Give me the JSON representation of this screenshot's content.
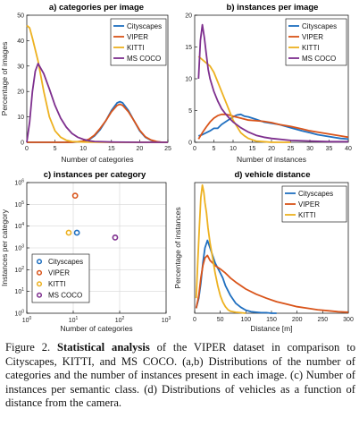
{
  "colors": {
    "Cityscapes": "#1f6fc0",
    "VIPER": "#d9541a",
    "KITTI": "#edb120",
    "MS COCO": "#7e2f8e"
  },
  "caption": {
    "label": "Figure 2.",
    "bold": "Statistical analysis",
    "text": " of the VIPER dataset in comparison to Cityscapes, KITTI, and MS COCO. (a,b) Distributions of the number of categories and the number of instances present in each image. (c) Number of instances per semantic class. (d) Distributions of vehicles as a function of distance from the camera."
  },
  "chart_data": [
    {
      "id": "a",
      "type": "line",
      "title": "a) categories per image",
      "xlabel": "Number of categories",
      "ylabel": "Percentage of images",
      "xlim": [
        0,
        25
      ],
      "ylim": [
        0,
        50
      ],
      "xticks": [
        0,
        5,
        10,
        15,
        20,
        25
      ],
      "yticks": [
        0,
        10,
        20,
        30,
        40,
        50
      ],
      "legend": "top-right",
      "series": [
        {
          "name": "Cityscapes",
          "x": [
            0,
            2,
            4,
            6,
            8,
            10,
            11,
            12,
            13,
            14,
            15,
            16,
            16.5,
            17,
            18,
            19,
            20,
            21,
            22,
            23,
            24,
            25
          ],
          "y": [
            0,
            0,
            0,
            0,
            0,
            0.3,
            1,
            2.5,
            5,
            8.5,
            12.5,
            15.5,
            16,
            15.5,
            12.5,
            8.5,
            4.5,
            2,
            0.8,
            0.2,
            0,
            0
          ]
        },
        {
          "name": "VIPER",
          "x": [
            0,
            2,
            4,
            6,
            8,
            10,
            11,
            12,
            13,
            14,
            15,
            16,
            16.5,
            17,
            18,
            19,
            20,
            21,
            22,
            23,
            24,
            25
          ],
          "y": [
            0,
            0,
            0,
            0,
            0,
            0.5,
            1.2,
            2.8,
            5.5,
            8.5,
            12,
            14.5,
            15,
            14.5,
            12,
            8.5,
            4.8,
            2.2,
            0.9,
            0.3,
            0,
            0
          ]
        },
        {
          "name": "KITTI",
          "x": [
            0,
            0.5,
            1,
            2,
            3,
            4,
            5,
            6,
            7,
            8,
            10,
            15,
            20,
            25
          ],
          "y": [
            46,
            45,
            41,
            32,
            20,
            10,
            4.5,
            2,
            0.8,
            0.3,
            0.1,
            0,
            0,
            0
          ]
        },
        {
          "name": "MS COCO",
          "x": [
            0,
            0.5,
            1,
            1.5,
            2,
            3,
            4,
            5,
            6,
            7,
            8,
            9,
            10,
            11,
            12,
            15,
            20,
            25
          ],
          "y": [
            0,
            8,
            20,
            28,
            31,
            27,
            21,
            14.5,
            9.5,
            6,
            3.5,
            2,
            1.2,
            0.6,
            0.3,
            0.1,
            0,
            0
          ]
        }
      ]
    },
    {
      "id": "b",
      "type": "line",
      "title": "b) instances per image",
      "xlabel": "Number of instances",
      "ylabel": "",
      "xlim": [
        0,
        40
      ],
      "ylim": [
        0,
        20
      ],
      "xticks": [
        0,
        5,
        10,
        15,
        20,
        25,
        30,
        35,
        40
      ],
      "yticks": [
        0,
        5,
        10,
        15,
        20
      ],
      "legend": "top-right",
      "series": [
        {
          "name": "Cityscapes",
          "x": [
            1,
            2,
            3,
            4,
            5,
            6,
            7,
            8,
            9,
            10,
            11,
            12,
            13,
            14,
            15,
            16,
            18,
            20,
            22,
            25,
            28,
            30,
            32,
            35,
            38,
            40
          ],
          "y": [
            1,
            1.2,
            1.5,
            1.8,
            2.2,
            2.2,
            2.8,
            3.2,
            3.6,
            4,
            4.3,
            4.4,
            4.1,
            4,
            3.8,
            3.6,
            3.2,
            3,
            2.8,
            2.3,
            1.8,
            1.5,
            1.2,
            0.9,
            0.6,
            0.5
          ]
        },
        {
          "name": "VIPER",
          "x": [
            1,
            2,
            3,
            4,
            5,
            6,
            7,
            8,
            9,
            10,
            12,
            14,
            16,
            18,
            20,
            22,
            25,
            28,
            30,
            32,
            35,
            38,
            40
          ],
          "y": [
            0.5,
            1.5,
            2.4,
            3.2,
            3.8,
            4.2,
            4.4,
            4.4,
            4.3,
            4.1,
            3.8,
            3.5,
            3.4,
            3.3,
            3.1,
            2.8,
            2.5,
            2.1,
            1.8,
            1.6,
            1.3,
            1,
            0.8
          ]
        },
        {
          "name": "KITTI",
          "x": [
            1,
            2,
            3,
            4,
            5,
            6,
            7,
            8,
            9,
            10,
            11,
            12,
            13,
            14,
            15,
            16,
            18,
            20,
            22,
            25
          ],
          "y": [
            13.5,
            13,
            12.5,
            12,
            11,
            9.5,
            8,
            6.5,
            5,
            3.5,
            2.5,
            1.5,
            1,
            0.6,
            0.4,
            0.2,
            0.1,
            0,
            0,
            0
          ]
        },
        {
          "name": "MS COCO",
          "x": [
            1,
            1.5,
            2,
            2.5,
            3,
            3.5,
            4,
            5,
            6,
            7,
            8,
            9,
            10,
            12,
            14,
            16,
            18,
            20,
            25,
            30,
            35,
            40
          ],
          "y": [
            10,
            16,
            18.5,
            16.5,
            14,
            11.5,
            10,
            8,
            6.5,
            5.3,
            4.5,
            3.8,
            3.2,
            2.3,
            1.6,
            1.1,
            0.8,
            0.6,
            0.3,
            0.2,
            0.1,
            0.1
          ]
        }
      ]
    },
    {
      "id": "c",
      "type": "scatter",
      "title": "c) instances per category",
      "xlabel": "Number of categories",
      "ylabel": "Instances per category",
      "xscale": "log",
      "yscale": "log",
      "xlim": [
        1,
        1000
      ],
      "ylim": [
        1,
        1000000
      ],
      "xtick_labels": [
        "10^0",
        "10^1",
        "10^2",
        "10^3"
      ],
      "ytick_labels": [
        "10^0",
        "10^1",
        "10^2",
        "10^3",
        "10^4",
        "10^5",
        "10^6"
      ],
      "grid": true,
      "legend": "bottom-left",
      "series": [
        {
          "name": "Cityscapes",
          "x": [
            12
          ],
          "y": [
            5000
          ]
        },
        {
          "name": "VIPER",
          "x": [
            11
          ],
          "y": [
            250000
          ]
        },
        {
          "name": "KITTI",
          "x": [
            8
          ],
          "y": [
            5000
          ]
        },
        {
          "name": "MS COCO",
          "x": [
            80
          ],
          "y": [
            3000
          ]
        }
      ]
    },
    {
      "id": "d",
      "type": "line",
      "title": "d) vehicle distance",
      "xlabel": "Distance [m]",
      "ylabel": "Percentage of instances",
      "xlim": [
        0,
        300
      ],
      "ylim": [
        0,
        2.6
      ],
      "xticks": [
        0,
        50,
        100,
        150,
        200,
        250,
        300
      ],
      "legend": "top-right",
      "series": [
        {
          "name": "Cityscapes",
          "x": [
            3,
            8,
            12,
            16,
            20,
            25,
            30,
            35,
            40,
            45,
            50,
            55,
            60,
            70,
            80,
            90,
            100,
            110,
            120,
            130,
            140,
            150,
            160
          ],
          "y": [
            0.1,
            0.3,
            0.6,
            1.0,
            1.3,
            1.45,
            1.3,
            1.15,
            1.0,
            0.9,
            0.8,
            0.7,
            0.55,
            0.35,
            0.2,
            0.12,
            0.06,
            0.03,
            0.02,
            0.01,
            0.01,
            0,
            0
          ]
        },
        {
          "name": "VIPER",
          "x": [
            3,
            8,
            12,
            16,
            20,
            25,
            30,
            35,
            40,
            50,
            60,
            70,
            80,
            90,
            100,
            120,
            140,
            160,
            180,
            200,
            220,
            240,
            260,
            280,
            300
          ],
          "y": [
            0.1,
            0.35,
            0.7,
            0.95,
            1.1,
            1.15,
            1.05,
            1.0,
            0.95,
            0.88,
            0.8,
            0.7,
            0.62,
            0.55,
            0.48,
            0.38,
            0.3,
            0.23,
            0.18,
            0.13,
            0.1,
            0.07,
            0.05,
            0.03,
            0.02
          ]
        },
        {
          "name": "KITTI",
          "x": [
            3,
            6,
            9,
            12,
            15,
            18,
            20,
            23,
            26,
            30,
            35,
            40,
            45,
            50,
            55,
            60,
            65,
            70,
            80,
            90,
            100
          ],
          "y": [
            0.3,
            1.0,
            1.7,
            2.3,
            2.55,
            2.4,
            2.2,
            2.0,
            1.7,
            1.4,
            1.1,
            0.8,
            0.55,
            0.35,
            0.22,
            0.13,
            0.07,
            0.04,
            0.02,
            0.01,
            0
          ]
        }
      ]
    }
  ]
}
